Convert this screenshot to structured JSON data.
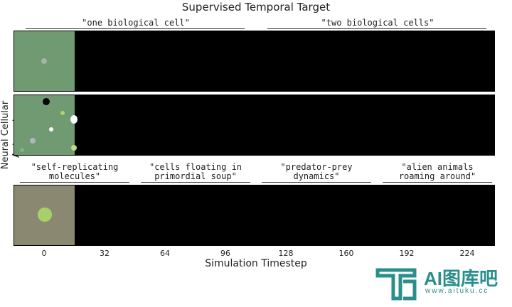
{
  "figure": {
    "title": "Supervised Temporal Target",
    "ylabel": "Neural Cellular Automata",
    "xlabel": "Simulation Timestep"
  },
  "captions": {
    "row1": [
      "\"one biological cell\"",
      "\"two biological cells\""
    ],
    "row3": [
      "\"self-replicating\nmolecules\"",
      "\"cells floating in\nprimordial soup\"",
      "\"predator-prey\ndynamics\"",
      "\"alien animals\nroaming around\""
    ]
  },
  "x_ticks": [
    "0",
    "32",
    "64",
    "96",
    "128",
    "160",
    "192",
    "224"
  ],
  "colors": {
    "frame_green": "#6f9a72",
    "frame_olive": "#8a8870",
    "panel_background": "#000000",
    "logo": "#2a8f8c"
  },
  "watermark": {
    "name": "AI图库吧",
    "url": "www.aituku.cc"
  }
}
